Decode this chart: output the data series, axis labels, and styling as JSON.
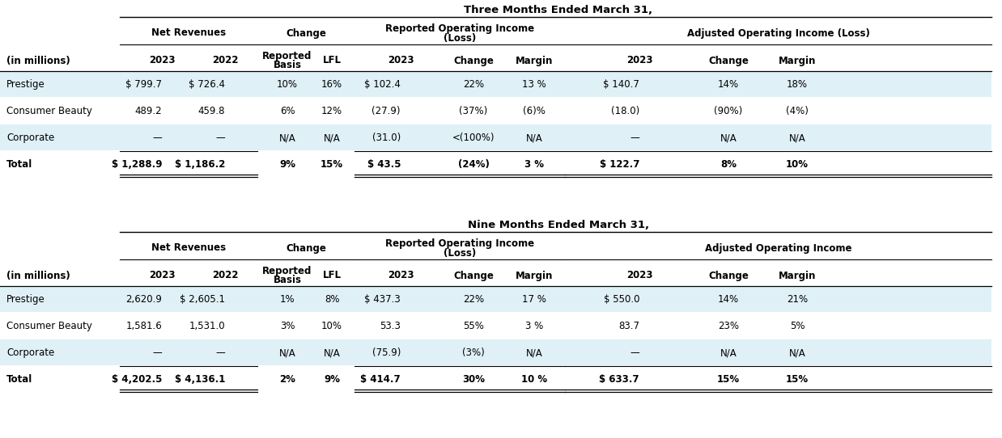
{
  "title1": "Three Months Ended March 31,",
  "title2": "Nine Months Ended March 31,",
  "adj_label_3m": "Adjusted Operating Income (Loss)",
  "adj_label_9m": "Adjusted Operating Income",
  "net_rev_label": "Net Revenues",
  "change_label": "Change",
  "rep_op_label1": "Reported Operating Income",
  "rep_op_label2": "(Loss)",
  "table1_rows": [
    [
      "Prestige",
      "$ 799.7",
      "$ 726.4",
      "10%",
      "16%",
      "$ 102.4",
      "22%",
      "13 %",
      "$ 140.7",
      "14%",
      "18%"
    ],
    [
      "Consumer Beauty",
      "489.2",
      "459.8",
      "6%",
      "12%",
      "(27.9)",
      "(37%)",
      "(6)%",
      "(18.0)",
      "(90%)",
      "(4%)"
    ],
    [
      "Corporate",
      "—",
      "—",
      "N/A",
      "N/A",
      "(31.0)",
      "<(100%)",
      "N/A",
      "—",
      "N/A",
      "N/A"
    ],
    [
      "Total",
      "$ 1,288.9",
      "$ 1,186.2",
      "9%",
      "15%",
      "$ 43.5",
      "(24%)",
      "3 %",
      "$ 122.7",
      "8%",
      "10%"
    ]
  ],
  "table2_rows": [
    [
      "Prestige",
      "2,620.9",
      "$ 2,605.1",
      "1%",
      "8%",
      "$ 437.3",
      "22%",
      "17 %",
      "$ 550.0",
      "14%",
      "21%"
    ],
    [
      "Consumer Beauty",
      "1,581.6",
      "1,531.0",
      "3%",
      "10%",
      "53.3",
      "55%",
      "3 %",
      "83.7",
      "23%",
      "5%"
    ],
    [
      "Corporate",
      "—",
      "—",
      "N/A",
      "N/A",
      "(75.9)",
      "(3%)",
      "N/A",
      "—",
      "N/A",
      "N/A"
    ],
    [
      "Total",
      "$ 4,202.5",
      "$ 4,136.1",
      "2%",
      "9%",
      "$ 414.7",
      "30%",
      "10 %",
      "$ 633.7",
      "15%",
      "15%"
    ]
  ],
  "bg_color": "#ffffff",
  "stripe_color": "#dff0f7",
  "subheaders_in_millions": "(in millions)",
  "subheader_2023": "2023",
  "subheader_2022": "2022",
  "subheader_rep_basis1": "Reported",
  "subheader_rep_basis2": "Basis",
  "subheader_lfl": "LFL",
  "subheader_change": "Change",
  "subheader_margin": "Margin"
}
